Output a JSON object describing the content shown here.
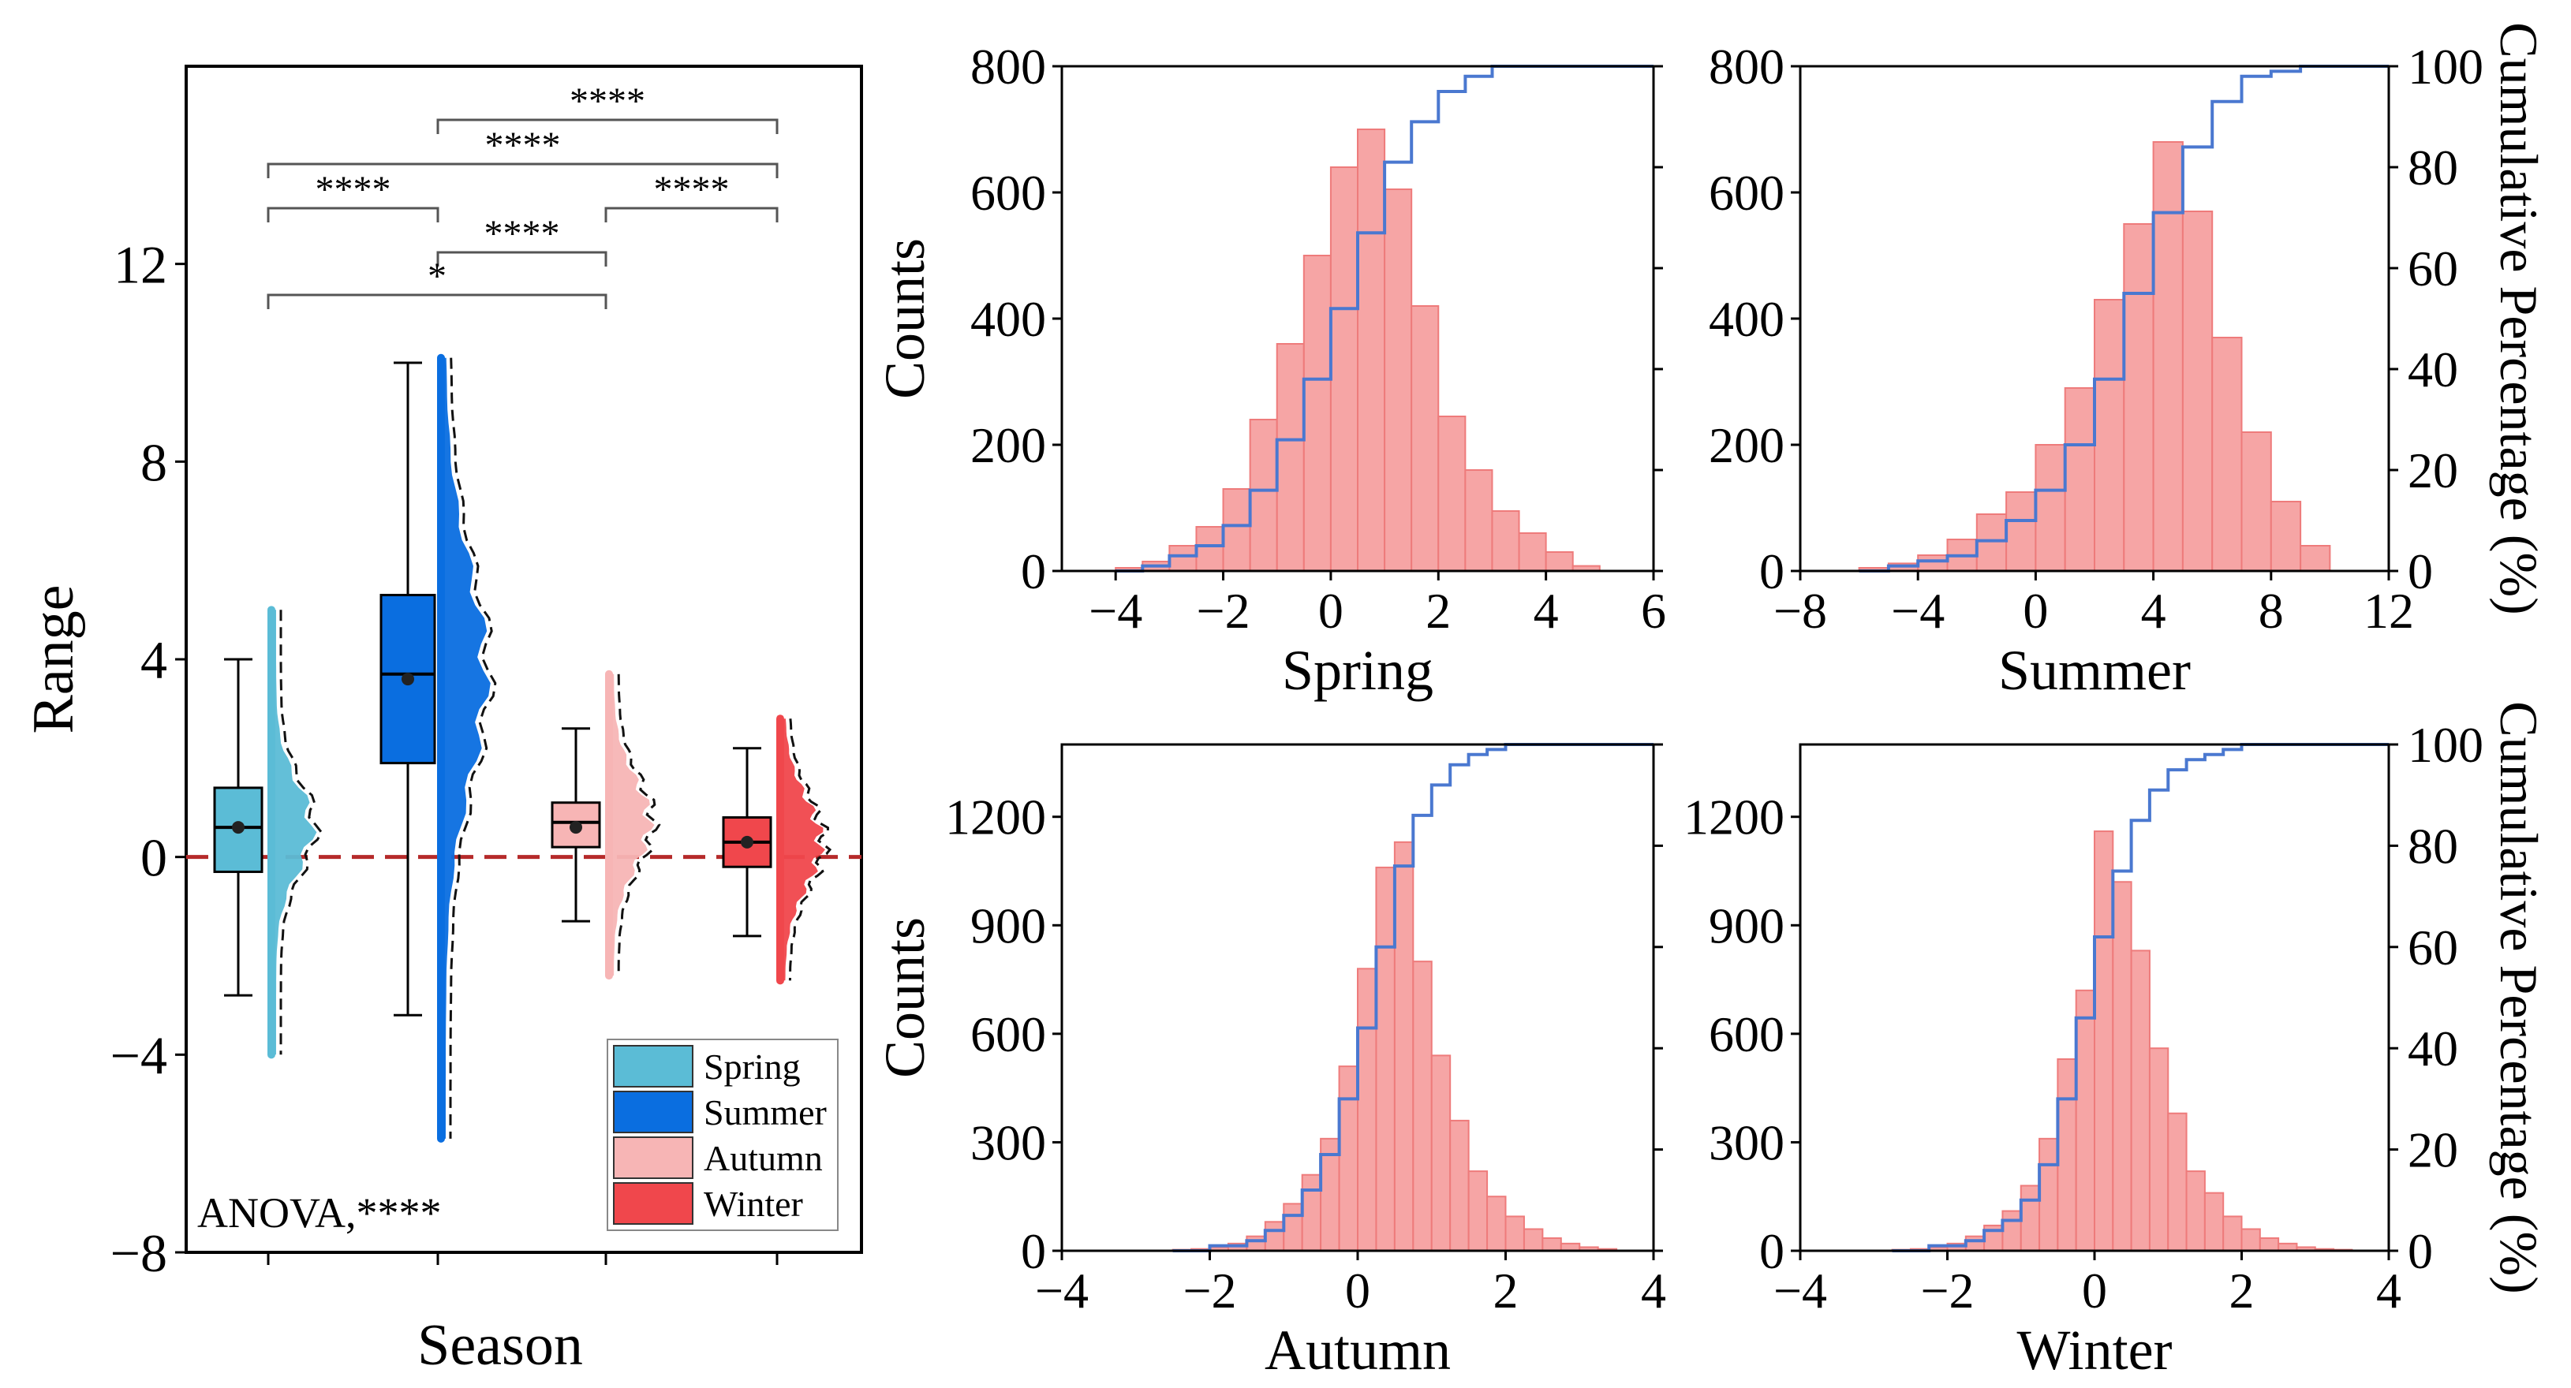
{
  "colors": {
    "spring": "#5bbcd6",
    "summer": "#0a6ee0",
    "autumn": "#f7b5b5",
    "winter": "#f0474c",
    "hist_fill": "#f6a5a5",
    "hist_edge": "#ee7b7b",
    "cum_line": "#4a78d0",
    "zero_line": "#b52a2a"
  },
  "chart_data": [
    {
      "id": "box",
      "type": "box",
      "title": "",
      "xlabel": "Season",
      "ylabel": "Range",
      "ylim": [
        -8,
        16
      ],
      "yticks": [
        -8,
        -4,
        0,
        4,
        8,
        12
      ],
      "annotation": "ANOVA,****",
      "reference_line": 0,
      "series": [
        {
          "name": "Spring",
          "q1": -0.3,
          "median": 0.6,
          "q3": 1.4,
          "mean": 0.6,
          "whisker_low": -2.8,
          "whisker_high": 4.0,
          "dist_min": -4.0,
          "dist_max": 5.0
        },
        {
          "name": "Summer",
          "q1": 1.9,
          "median": 3.7,
          "q3": 5.3,
          "mean": 3.6,
          "whisker_low": -3.2,
          "whisker_high": 10.0,
          "dist_min": -5.7,
          "dist_max": 10.1
        },
        {
          "name": "Autumn",
          "q1": 0.2,
          "median": 0.7,
          "q3": 1.1,
          "mean": 0.6,
          "whisker_low": -1.3,
          "whisker_high": 2.6,
          "dist_min": -2.4,
          "dist_max": 3.7
        },
        {
          "name": "Winter",
          "q1": -0.2,
          "median": 0.3,
          "q3": 0.8,
          "mean": 0.3,
          "whisker_low": -1.6,
          "whisker_high": 2.2,
          "dist_min": -2.5,
          "dist_max": 2.8
        }
      ],
      "significance": [
        {
          "from": 1,
          "to": 3,
          "label": "****"
        },
        {
          "from": 0,
          "to": 3,
          "label": "****"
        },
        {
          "from": 0,
          "to": 1,
          "label": "****"
        },
        {
          "from": 2,
          "to": 3,
          "label": "****"
        },
        {
          "from": 1,
          "to": 2,
          "label": "****"
        },
        {
          "from": 0,
          "to": 2,
          "label": "*"
        }
      ],
      "legend": [
        "Spring",
        "Summer",
        "Autumn",
        "Winter"
      ]
    },
    {
      "id": "spring",
      "type": "histogram",
      "xlabel": "Spring",
      "ylabel": "Counts",
      "y2label": "",
      "xlim": [
        -5,
        6
      ],
      "xticks": [
        -4,
        -2,
        0,
        2,
        4,
        6
      ],
      "ylim": [
        0,
        800
      ],
      "yticks": [
        0,
        200,
        400,
        600,
        800
      ],
      "y2ticks": [],
      "bin_edges": [
        -4.0,
        -3.5,
        -3.0,
        -2.5,
        -2.0,
        -1.5,
        -1.0,
        -0.5,
        0.0,
        0.5,
        1.0,
        1.5,
        2.0,
        2.5,
        3.0,
        3.5,
        4.0,
        4.5,
        5.0
      ],
      "counts": [
        5,
        15,
        40,
        70,
        130,
        240,
        360,
        500,
        640,
        700,
        605,
        420,
        245,
        160,
        95,
        60,
        30,
        8
      ],
      "cumulative_percent": [
        0,
        1,
        3,
        5,
        9,
        16,
        26,
        38,
        52,
        67,
        81,
        89,
        95,
        98,
        100,
        100,
        100,
        100
      ]
    },
    {
      "id": "summer",
      "type": "histogram",
      "xlabel": "Summer",
      "ylabel": "",
      "y2label": "Cumulative Percentage (%)",
      "xlim": [
        -8,
        12
      ],
      "xticks": [
        -8,
        -4,
        0,
        4,
        8,
        12
      ],
      "ylim": [
        0,
        800
      ],
      "yticks": [
        0,
        200,
        400,
        600,
        800
      ],
      "y2ticks": [
        0,
        20,
        40,
        60,
        80,
        100
      ],
      "bin_edges": [
        -6,
        -5,
        -4,
        -3,
        -2,
        -1,
        0,
        1,
        2,
        3,
        4,
        5,
        6,
        7,
        8,
        9,
        10
      ],
      "counts": [
        5,
        12,
        25,
        50,
        90,
        125,
        200,
        290,
        430,
        550,
        680,
        570,
        370,
        220,
        110,
        40
      ],
      "cumulative_percent": [
        0,
        1,
        2,
        3,
        6,
        10,
        16,
        25,
        38,
        55,
        71,
        84,
        93,
        98,
        99,
        100
      ]
    },
    {
      "id": "autumn",
      "type": "histogram",
      "xlabel": "Autumn",
      "ylabel": "Counts",
      "y2label": "",
      "xlim": [
        -4,
        4
      ],
      "xticks": [
        -4,
        -2,
        0,
        2,
        4
      ],
      "ylim": [
        0,
        1400
      ],
      "yticks": [
        0,
        300,
        600,
        900,
        1200
      ],
      "y2ticks": [],
      "bin_edges": [
        -2.5,
        -2.25,
        -2.0,
        -1.75,
        -1.5,
        -1.25,
        -1.0,
        -0.75,
        -0.5,
        -0.25,
        0.0,
        0.25,
        0.5,
        0.75,
        1.0,
        1.25,
        1.5,
        1.75,
        2.0,
        2.25,
        2.5,
        2.75,
        3.0,
        3.25,
        3.5
      ],
      "counts": [
        3,
        5,
        10,
        20,
        40,
        80,
        130,
        210,
        310,
        510,
        780,
        1060,
        1130,
        800,
        540,
        360,
        220,
        150,
        95,
        60,
        35,
        20,
        10,
        5
      ],
      "cumulative_percent": [
        0,
        0,
        1,
        1,
        2,
        4,
        7,
        12,
        19,
        30,
        44,
        60,
        76,
        86,
        92,
        96,
        98,
        99,
        100,
        100,
        100,
        100,
        100,
        100
      ]
    },
    {
      "id": "winter",
      "type": "histogram",
      "xlabel": "Winter",
      "ylabel": "",
      "y2label": "Cumulative Percentage (%)",
      "xlim": [
        -4,
        4
      ],
      "xticks": [
        -4,
        -2,
        0,
        2,
        4
      ],
      "ylim": [
        0,
        1400
      ],
      "yticks": [
        0,
        300,
        600,
        900,
        1200
      ],
      "y2ticks": [
        0,
        20,
        40,
        60,
        80,
        100
      ],
      "bin_edges": [
        -2.75,
        -2.5,
        -2.25,
        -2.0,
        -1.75,
        -1.5,
        -1.25,
        -1.0,
        -0.75,
        -0.5,
        -0.25,
        0.0,
        0.25,
        0.5,
        0.75,
        1.0,
        1.25,
        1.5,
        1.75,
        2.0,
        2.25,
        2.5,
        2.75,
        3.0,
        3.25,
        3.5
      ],
      "counts": [
        3,
        5,
        10,
        20,
        40,
        70,
        110,
        180,
        310,
        530,
        720,
        1160,
        1020,
        830,
        560,
        380,
        220,
        160,
        95,
        60,
        35,
        20,
        10,
        5,
        3
      ],
      "cumulative_percent": [
        0,
        0,
        1,
        1,
        2,
        4,
        6,
        10,
        17,
        30,
        46,
        62,
        75,
        85,
        91,
        95,
        97,
        98,
        99,
        100,
        100,
        100,
        100,
        100,
        100
      ]
    }
  ]
}
